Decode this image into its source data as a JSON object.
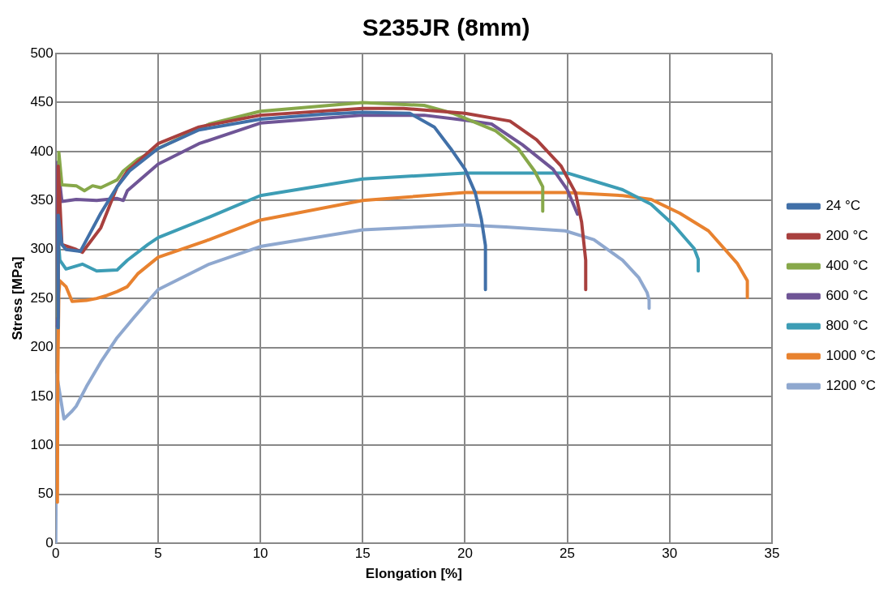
{
  "chart_data": {
    "type": "line",
    "title": "S235JR (8mm)",
    "xlabel": "Elongation [%]",
    "ylabel": "Stress [MPa]",
    "xlim": [
      0,
      35
    ],
    "xticks": [
      0,
      5,
      10,
      15,
      20,
      25,
      30,
      35
    ],
    "ylim": [
      0,
      500
    ],
    "yticks": [
      0,
      50,
      100,
      150,
      200,
      250,
      300,
      350,
      400,
      450,
      500
    ],
    "grid": true,
    "legend": "right",
    "marker": "none",
    "line_style": "solid",
    "series": [
      {
        "name": "24 °C",
        "color": "#4170a8",
        "x": [
          0.1,
          0.12,
          0.3,
          0.5,
          1.2,
          2.2,
          3.0,
          3.6,
          5,
          7,
          10,
          13,
          15,
          17.3,
          18.5,
          19.3,
          20,
          20.5,
          20.8,
          21,
          21
        ],
        "values": [
          220,
          335,
          305,
          300,
          298,
          337,
          364,
          380,
          403,
          422,
          433,
          438,
          440,
          439,
          425,
          403,
          382,
          358,
          331,
          304,
          259
        ]
      },
      {
        "name": "200 °C",
        "color": "#a8403e",
        "x": [
          0.1,
          0.12,
          0.3,
          1.0,
          1.3,
          2.2,
          2.6,
          3.0,
          3.5,
          5,
          7,
          10,
          15,
          17,
          20,
          22.2,
          23.5,
          24.7,
          25.4,
          25.7,
          25.9,
          25.9
        ],
        "values": [
          230,
          385,
          305,
          300,
          297,
          322,
          343,
          364,
          380,
          408,
          425,
          437,
          444,
          444,
          439,
          431,
          412,
          385,
          358,
          328,
          289,
          259
        ]
      },
      {
        "name": "400 °C",
        "color": "#87a84a",
        "x": [
          0.1,
          0.15,
          0.3,
          1.0,
          1.4,
          1.8,
          2.2,
          2.7,
          3.0,
          3.3,
          4,
          5,
          7.5,
          10,
          15,
          18,
          19.4,
          21.5,
          22.6,
          23.4,
          23.8,
          23.8
        ],
        "values": [
          230,
          399,
          366,
          365,
          360,
          365,
          363,
          368,
          371,
          380,
          392,
          403,
          428,
          441,
          450,
          447,
          439,
          421,
          403,
          380,
          364,
          339
        ]
      },
      {
        "name": "600 °C",
        "color": "#6f5596",
        "x": [
          0.05,
          0.08,
          0.3,
          1.0,
          2.0,
          3.0,
          3.3,
          3.5,
          5,
          7,
          10,
          15,
          18,
          20,
          21.3,
          22.8,
          24.3,
          25.0,
          25.5
        ],
        "values": [
          222,
          389,
          349,
          351,
          350,
          352,
          350,
          360,
          387,
          408,
          429,
          437,
          437,
          432,
          428,
          407,
          382,
          361,
          336
        ]
      },
      {
        "name": "800 °C",
        "color": "#3d9db5",
        "x": [
          0.05,
          0.07,
          0.2,
          0.5,
          1.3,
          2.0,
          3.0,
          3.5,
          4.5,
          5,
          7.5,
          10,
          15,
          20,
          25,
          25.8,
          27.7,
          29.1,
          30.2,
          31.2,
          31.4,
          31.4
        ],
        "values": [
          230,
          328,
          289,
          280,
          285,
          278,
          279,
          289,
          305,
          312,
          333,
          355,
          372,
          378,
          378,
          373,
          361,
          346,
          325,
          301,
          290,
          278
        ]
      },
      {
        "name": "1000 °C",
        "color": "#e8822f",
        "x": [
          0.08,
          0.1,
          0.15,
          0.2,
          0.5,
          0.8,
          1.5,
          2.0,
          2.5,
          3.0,
          3.5,
          4,
          5,
          7.5,
          10,
          15,
          20,
          25,
          27.7,
          29.1,
          30.5,
          31.9,
          33.3,
          33.8,
          33.8
        ],
        "values": [
          42,
          172,
          255,
          268,
          262,
          247,
          248,
          250,
          253,
          257,
          262,
          275,
          292,
          310,
          330,
          350,
          358,
          358,
          355,
          351,
          337,
          319,
          286,
          268,
          251
        ]
      },
      {
        "name": "1200 °C",
        "color": "#8fa8cf",
        "x": [
          0,
          0.05,
          0.4,
          0.8,
          1.0,
          1.5,
          2.2,
          3,
          3.8,
          5,
          7.5,
          10,
          15,
          20,
          22,
          24.9,
          26.3,
          27.7,
          28.5,
          28.9,
          29.0,
          29.0
        ],
        "values": [
          0,
          172,
          127,
          135,
          140,
          160,
          185,
          210,
          230,
          259,
          285,
          303,
          320,
          325,
          323,
          319,
          310,
          289,
          271,
          256,
          248,
          240
        ]
      }
    ]
  }
}
